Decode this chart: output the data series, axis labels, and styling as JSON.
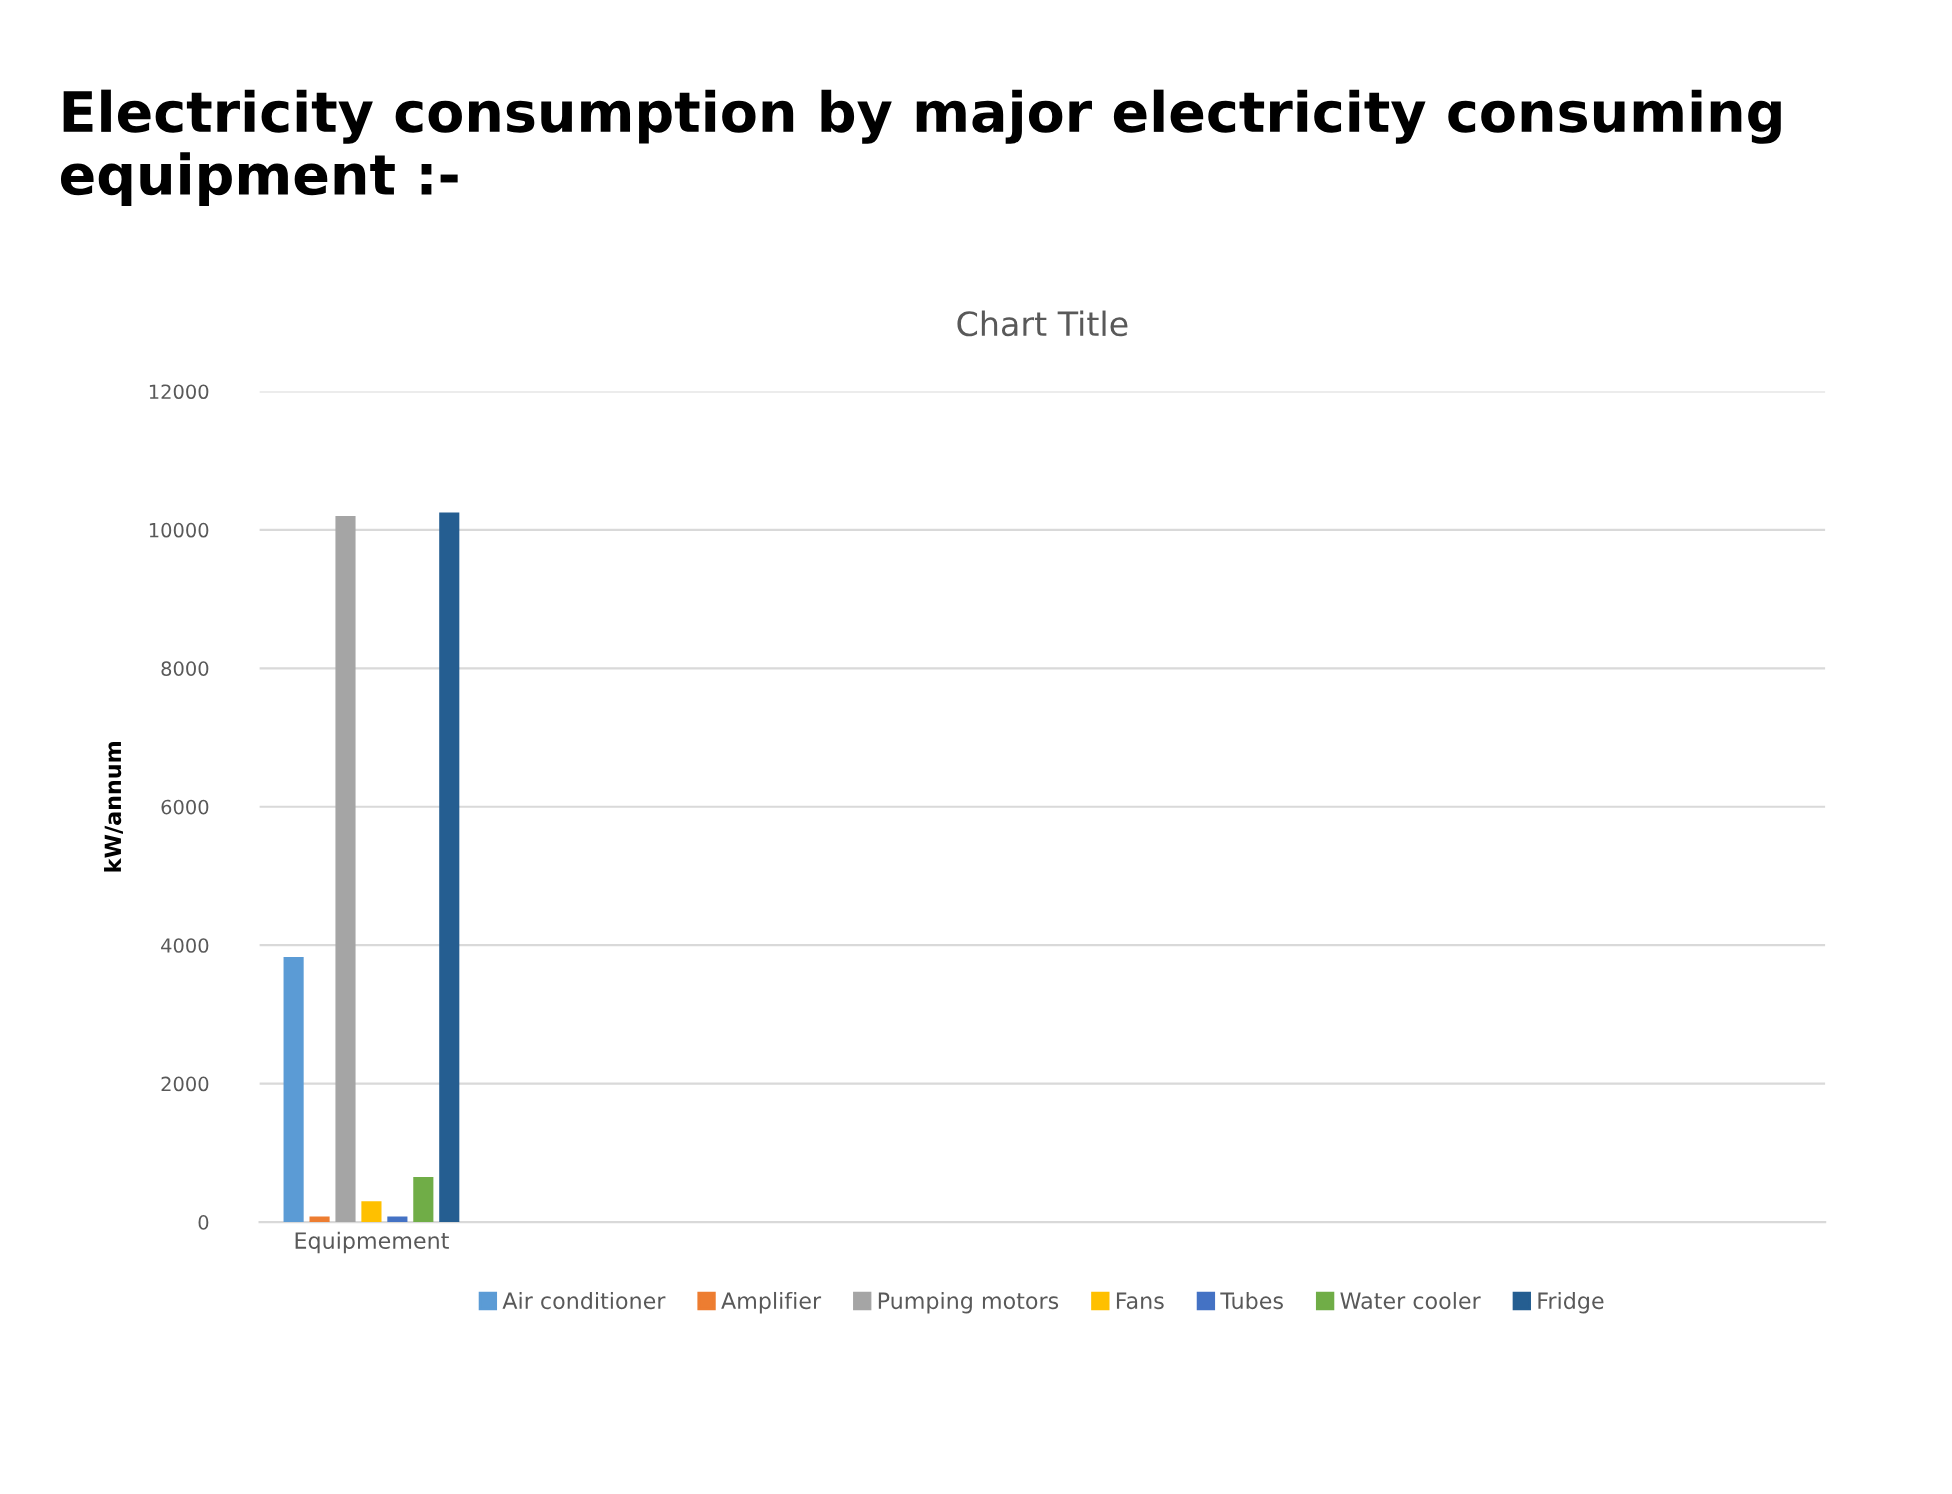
{
  "chart_data": {
    "type": "bar",
    "title": "Electricity consumption by major electricity consuming equipment :-",
    "subtitle": "Chart Title",
    "ylabel": "kW/annum",
    "categories": [
      "Equipmement",
      null,
      null,
      null,
      null,
      null,
      null
    ],
    "series": [
      {
        "name": "Air conditioner",
        "color": "#5b9bd5",
        "values": [
          3830,
          null,
          null,
          null,
          null,
          null,
          null
        ]
      },
      {
        "name": "Amplifier",
        "color": "#ed7d31",
        "values": [
          80,
          null,
          null,
          null,
          null,
          null,
          null
        ]
      },
      {
        "name": "Pumping motors",
        "color": "#a5a5a5",
        "values": [
          10200,
          null,
          null,
          null,
          null,
          null,
          null
        ]
      },
      {
        "name": "Fans",
        "color": "#ffc000",
        "values": [
          300,
          null,
          null,
          null,
          null,
          null,
          null
        ]
      },
      {
        "name": "Tubes",
        "color": "#4472c4",
        "values": [
          80,
          null,
          null,
          null,
          null,
          null,
          null
        ]
      },
      {
        "name": "Water cooler",
        "color": "#70ad47",
        "values": [
          650,
          null,
          null,
          null,
          null,
          null,
          null
        ]
      },
      {
        "name": "Fridge",
        "color": "#255e91",
        "values": [
          10250,
          null,
          null,
          null,
          null,
          null,
          null
        ]
      }
    ],
    "ylim": [
      0,
      12000
    ],
    "yticks": [
      0,
      2000,
      4000,
      6000,
      8000,
      10000,
      12000
    ],
    "grid": "y",
    "legend": "bottom"
  }
}
